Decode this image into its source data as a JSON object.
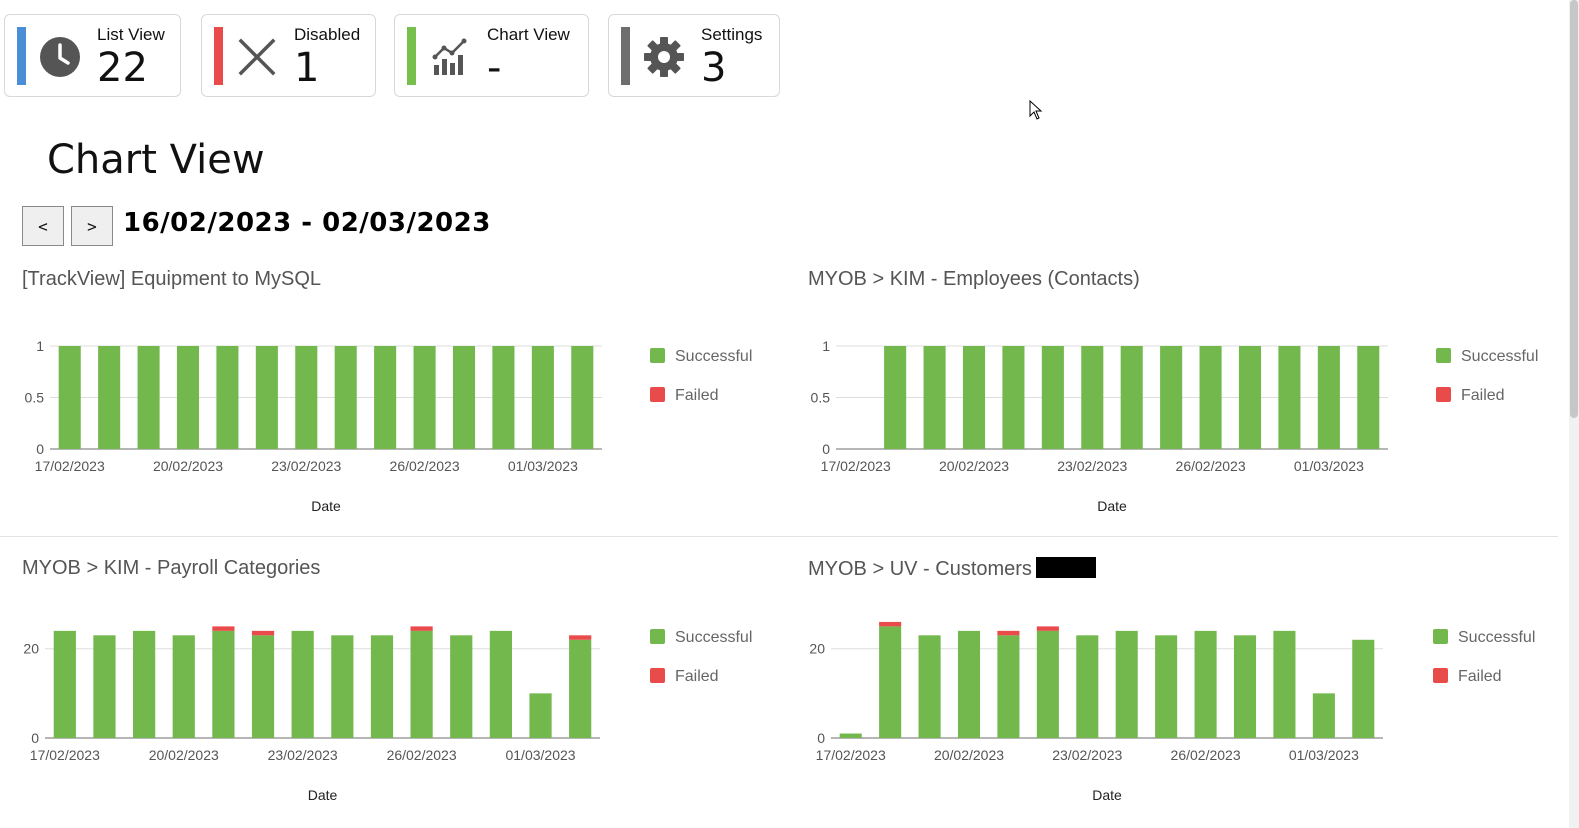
{
  "colors": {
    "successful": "#72b84c",
    "failed": "#e94b4b",
    "list_view_bar": "#4a8fd6",
    "disabled_bar": "#e94b4b",
    "chart_view_bar": "#78c04e",
    "settings_bar": "#6e6e6e"
  },
  "cards": [
    {
      "label": "List View",
      "value": "22",
      "icon": "clock-icon"
    },
    {
      "label": "Disabled",
      "value": "1",
      "icon": "close-icon"
    },
    {
      "label": "Chart View",
      "value": "-",
      "icon": "chart-icon"
    },
    {
      "label": "Settings",
      "value": "3",
      "icon": "gear-icon"
    }
  ],
  "page_title": "Chart View",
  "nav": {
    "prev_label": "<",
    "next_label": ">",
    "date_range": "16/02/2023 - 02/03/2023"
  },
  "chart_data": [
    {
      "type": "bar",
      "stacked": true,
      "title": "[TrackView] Equipment to MySQL",
      "xlabel": "Date",
      "categories": [
        "17/02/2023",
        "18/02/2023",
        "19/02/2023",
        "20/02/2023",
        "21/02/2023",
        "22/02/2023",
        "23/02/2023",
        "24/02/2023",
        "25/02/2023",
        "26/02/2023",
        "27/02/2023",
        "28/02/2023",
        "01/03/2023",
        "02/03/2023"
      ],
      "tick_labels": [
        "17/02/2023",
        "20/02/2023",
        "23/02/2023",
        "26/02/2023",
        "01/03/2023"
      ],
      "y_ticks": [
        "0",
        "0.5",
        "1"
      ],
      "ylim": [
        0,
        1
      ],
      "series": [
        {
          "name": "Successful",
          "values": [
            1,
            1,
            1,
            1,
            1,
            1,
            1,
            1,
            1,
            1,
            1,
            1,
            1,
            1
          ]
        },
        {
          "name": "Failed",
          "values": [
            0,
            0,
            0,
            0,
            0,
            0,
            0,
            0,
            0,
            0,
            0,
            0,
            0,
            0
          ]
        }
      ],
      "legend": "right"
    },
    {
      "type": "bar",
      "stacked": true,
      "title": "MYOB > KIM - Employees (Contacts)",
      "xlabel": "Date",
      "categories": [
        "17/02/2023",
        "18/02/2023",
        "19/02/2023",
        "20/02/2023",
        "21/02/2023",
        "22/02/2023",
        "23/02/2023",
        "24/02/2023",
        "25/02/2023",
        "26/02/2023",
        "27/02/2023",
        "28/02/2023",
        "01/03/2023",
        "02/03/2023"
      ],
      "tick_labels": [
        "17/02/2023",
        "20/02/2023",
        "23/02/2023",
        "26/02/2023",
        "01/03/2023"
      ],
      "y_ticks": [
        "0",
        "0.5",
        "1"
      ],
      "ylim": [
        0,
        1
      ],
      "series": [
        {
          "name": "Successful",
          "values": [
            0,
            1,
            1,
            1,
            1,
            1,
            1,
            1,
            1,
            1,
            1,
            1,
            1,
            1
          ]
        },
        {
          "name": "Failed",
          "values": [
            0,
            0,
            0,
            0,
            0,
            0,
            0,
            0,
            0,
            0,
            0,
            0,
            0,
            0
          ]
        }
      ],
      "legend": "right"
    },
    {
      "type": "bar",
      "stacked": true,
      "title": "MYOB > KIM - Payroll Categories",
      "xlabel": "Date",
      "categories": [
        "17/02/2023",
        "18/02/2023",
        "19/02/2023",
        "20/02/2023",
        "21/02/2023",
        "22/02/2023",
        "23/02/2023",
        "24/02/2023",
        "25/02/2023",
        "26/02/2023",
        "27/02/2023",
        "28/02/2023",
        "01/03/2023",
        "02/03/2023"
      ],
      "tick_labels": [
        "17/02/2023",
        "20/02/2023",
        "23/02/2023",
        "26/02/2023",
        "01/03/2023"
      ],
      "y_ticks": [
        "0",
        "20"
      ],
      "ylim": [
        0,
        28
      ],
      "series": [
        {
          "name": "Successful",
          "values": [
            24,
            23,
            24,
            23,
            24,
            23,
            24,
            23,
            23,
            24,
            23,
            24,
            10,
            22
          ]
        },
        {
          "name": "Failed",
          "values": [
            0,
            0,
            0,
            0,
            1,
            1,
            0,
            0,
            0,
            1,
            0,
            0,
            0,
            1
          ]
        }
      ],
      "legend": "right"
    },
    {
      "type": "bar",
      "stacked": true,
      "title": "MYOB > UV - Customers",
      "xlabel": "Date",
      "categories": [
        "17/02/2023",
        "18/02/2023",
        "19/02/2023",
        "20/02/2023",
        "21/02/2023",
        "22/02/2023",
        "23/02/2023",
        "24/02/2023",
        "25/02/2023",
        "26/02/2023",
        "27/02/2023",
        "28/02/2023",
        "01/03/2023",
        "02/03/2023"
      ],
      "tick_labels": [
        "17/02/2023",
        "20/02/2023",
        "23/02/2023",
        "26/02/2023",
        "01/03/2023"
      ],
      "y_ticks": [
        "0",
        "20"
      ],
      "ylim": [
        0,
        28
      ],
      "series": [
        {
          "name": "Successful",
          "values": [
            1,
            25,
            23,
            24,
            23,
            24,
            23,
            24,
            23,
            24,
            23,
            24,
            10,
            22
          ]
        },
        {
          "name": "Failed",
          "values": [
            0,
            1,
            0,
            0,
            1,
            1,
            0,
            0,
            0,
            0,
            0,
            0,
            0,
            0
          ]
        }
      ],
      "legend": "right"
    }
  ]
}
